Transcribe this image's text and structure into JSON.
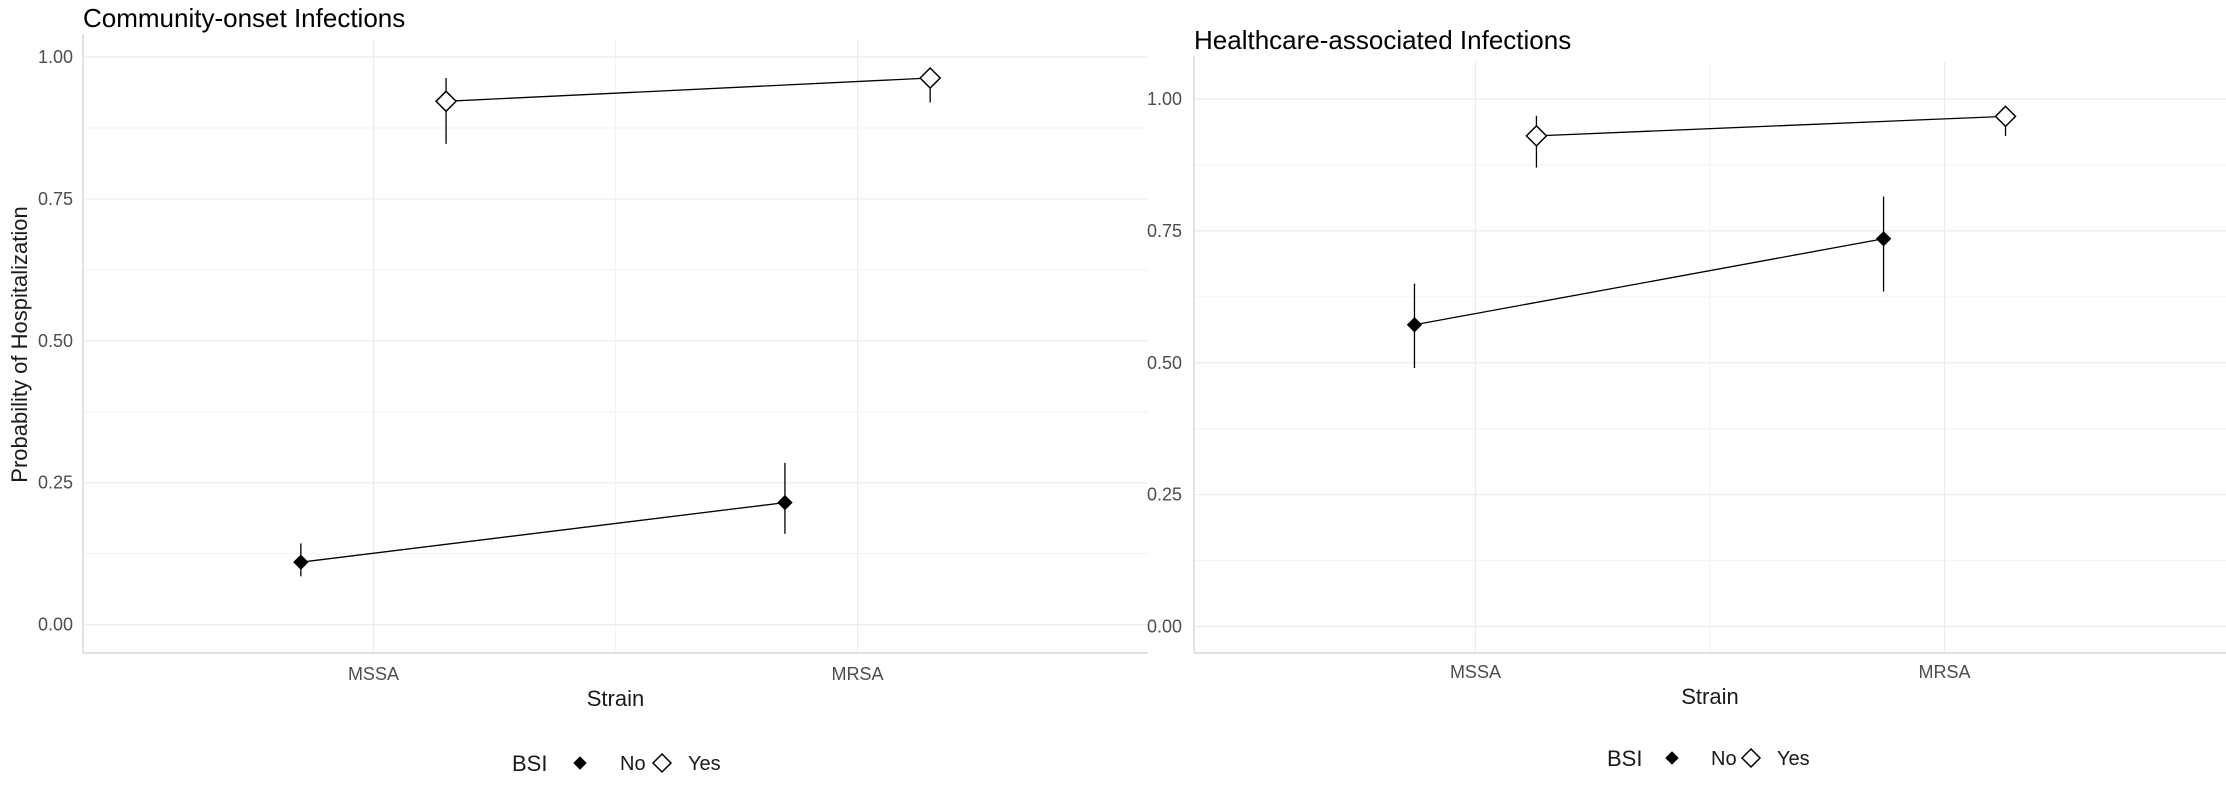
{
  "chart_data": [
    {
      "type": "line",
      "title": "Community-onset Infections",
      "xlabel": "Strain",
      "ylabel": "Probability of Hospitalization",
      "categories": [
        "MSSA",
        "MRSA"
      ],
      "ylim": [
        -0.05,
        1.03
      ],
      "yticks": [
        "0.00",
        "0.25",
        "0.50",
        "0.75",
        "1.00"
      ],
      "grid": true,
      "legend_title": "BSI",
      "legend_position": "bottom",
      "series": [
        {
          "name": "No",
          "marker": "filled-diamond",
          "values": [
            0.11,
            0.215
          ],
          "lower": [
            0.085,
            0.16
          ],
          "upper": [
            0.143,
            0.285
          ]
        },
        {
          "name": "Yes",
          "marker": "open-diamond",
          "values": [
            0.922,
            0.963
          ],
          "lower": [
            0.847,
            0.92
          ],
          "upper": [
            0.963,
            0.975
          ]
        }
      ]
    },
    {
      "type": "line",
      "title": "Healthcare-associated Infections",
      "xlabel": "Strain",
      "ylabel": "",
      "categories": [
        "MSSA",
        "MRSA"
      ],
      "ylim": [
        -0.05,
        1.07
      ],
      "yticks": [
        "0.00",
        "0.25",
        "0.50",
        "0.75",
        "1.00"
      ],
      "grid": true,
      "legend_title": "BSI",
      "legend_position": "bottom",
      "series": [
        {
          "name": "No",
          "marker": "filled-diamond",
          "values": [
            0.572,
            0.735
          ],
          "lower": [
            0.49,
            0.635
          ],
          "upper": [
            0.65,
            0.815
          ]
        },
        {
          "name": "Yes",
          "marker": "open-diamond",
          "values": [
            0.93,
            0.967
          ],
          "lower": [
            0.87,
            0.93
          ],
          "upper": [
            0.968,
            0.985
          ]
        }
      ]
    }
  ]
}
